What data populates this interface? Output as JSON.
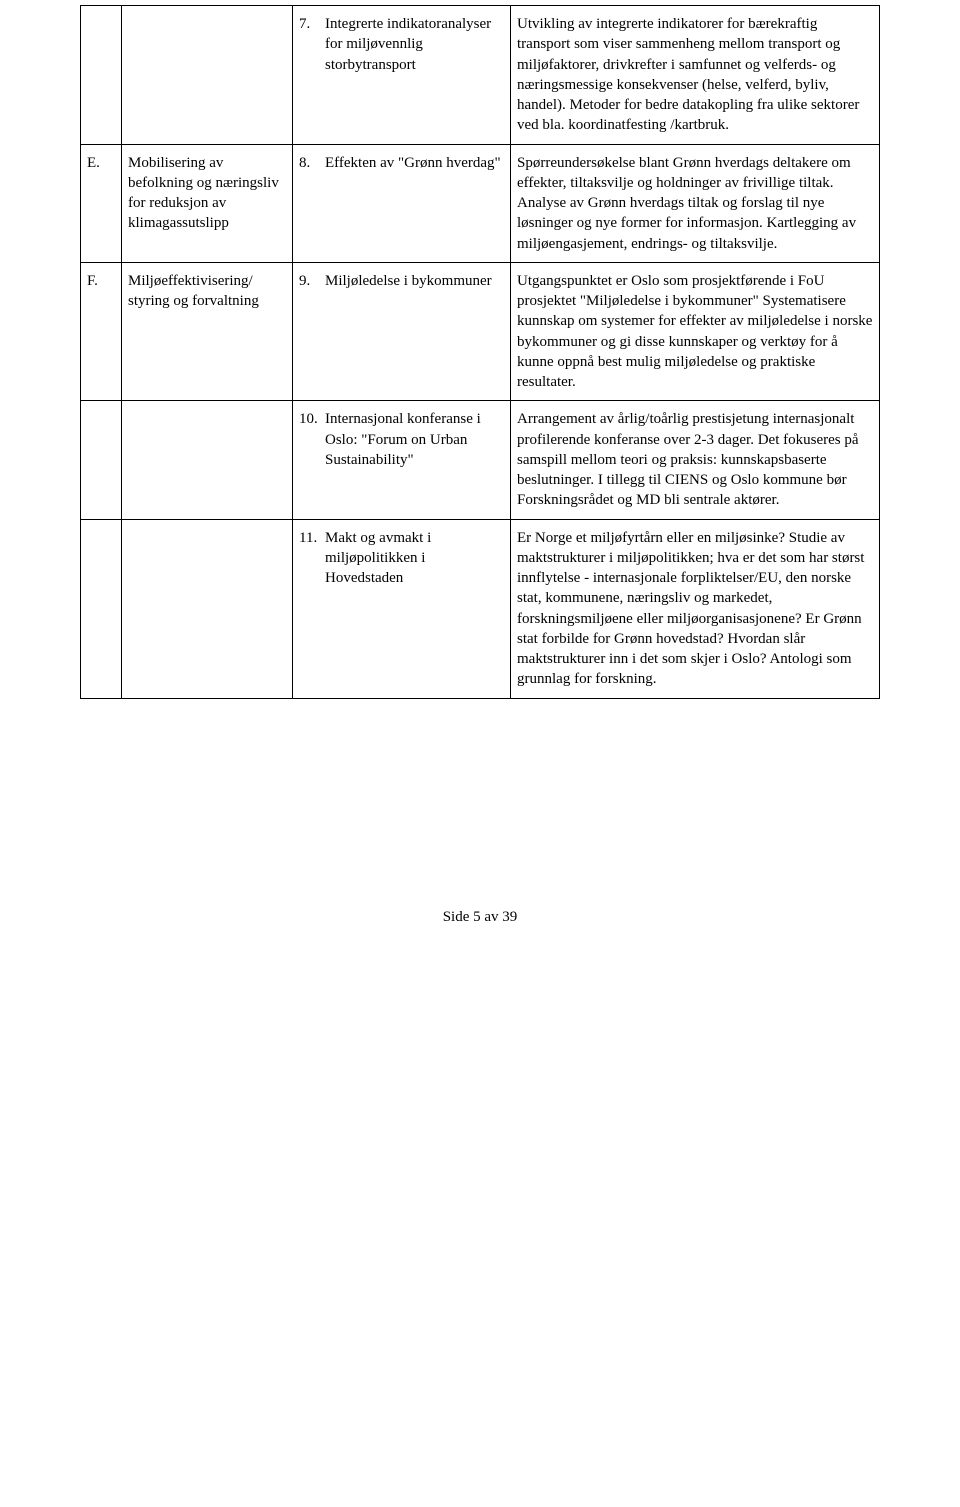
{
  "rows": [
    {
      "letter": "",
      "category": "",
      "item_num": "7.",
      "item_text": "Integrerte indikatoranalyser for miljøvennlig storbytransport",
      "desc": "Utvikling av integrerte indikatorer for bærekraftig transport som viser sammenheng mellom transport og miljøfaktorer, drivkrefter i samfunnet og velferds- og næringsmessige konsekvenser (helse, velferd, byliv, handel). Metoder for bedre datakopling fra ulike sektorer ved bla. koordinatfesting /kartbruk."
    },
    {
      "letter": "E.",
      "category": "Mobilisering av befolkning og næringsliv for reduksjon av klimagassutslipp",
      "item_num": "8.",
      "item_text": "Effekten av \"Grønn hverdag\"",
      "desc": "Spørreundersøkelse blant Grønn hverdags deltakere om effekter, tiltaksvilje og holdninger av frivillige tiltak. Analyse av Grønn hverdags tiltak og forslag til nye løsninger og nye former for informasjon. Kartlegging av miljøengasjement, endrings- og tiltaksvilje."
    },
    {
      "letter": "F.",
      "category": "Miljøeffektivisering/ styring og forvaltning",
      "item_num": "9.",
      "item_text": "Miljøledelse i bykommuner",
      "desc": "Utgangspunktet er Oslo som prosjektførende i FoU prosjektet \"Miljøledelse i bykommuner\" Systematisere kunnskap om systemer for effekter av miljøledelse i norske bykommuner og gi disse kunnskaper og verktøy for å kunne oppnå best mulig miljøledelse og praktiske resultater."
    },
    {
      "letter": "",
      "category": "",
      "item_num": "10.",
      "item_text": "Internasjonal konferanse i Oslo: \"Forum on Urban Sustainability\"",
      "desc": "Arrangement av årlig/toårlig prestisjetung internasjonalt profilerende konferanse over 2-3 dager. Det fokuseres på samspill mellom teori og praksis: kunnskapsbaserte beslutninger. I tillegg til CIENS og Oslo kommune bør Forskningsrådet og MD bli sentrale aktører."
    },
    {
      "letter": "",
      "category": "",
      "item_num": "11.",
      "item_text": "Makt og avmakt i miljøpolitikken i Hovedstaden",
      "desc": "Er Norge et miljøfyrtårn eller en miljøsinke? Studie av maktstrukturer i miljøpolitikken; hva er det som har størst innflytelse - internasjonale forpliktelser/EU, den norske stat, kommunene, næringsliv og markedet, forskningsmiljøene eller miljøorganisasjonene? Er Grønn stat forbilde for Grønn hovedstad? Hvordan slår maktstrukturer inn i det som skjer i Oslo? Antologi som grunnlag for forskning."
    }
  ],
  "footer": "Side 5 av 39"
}
